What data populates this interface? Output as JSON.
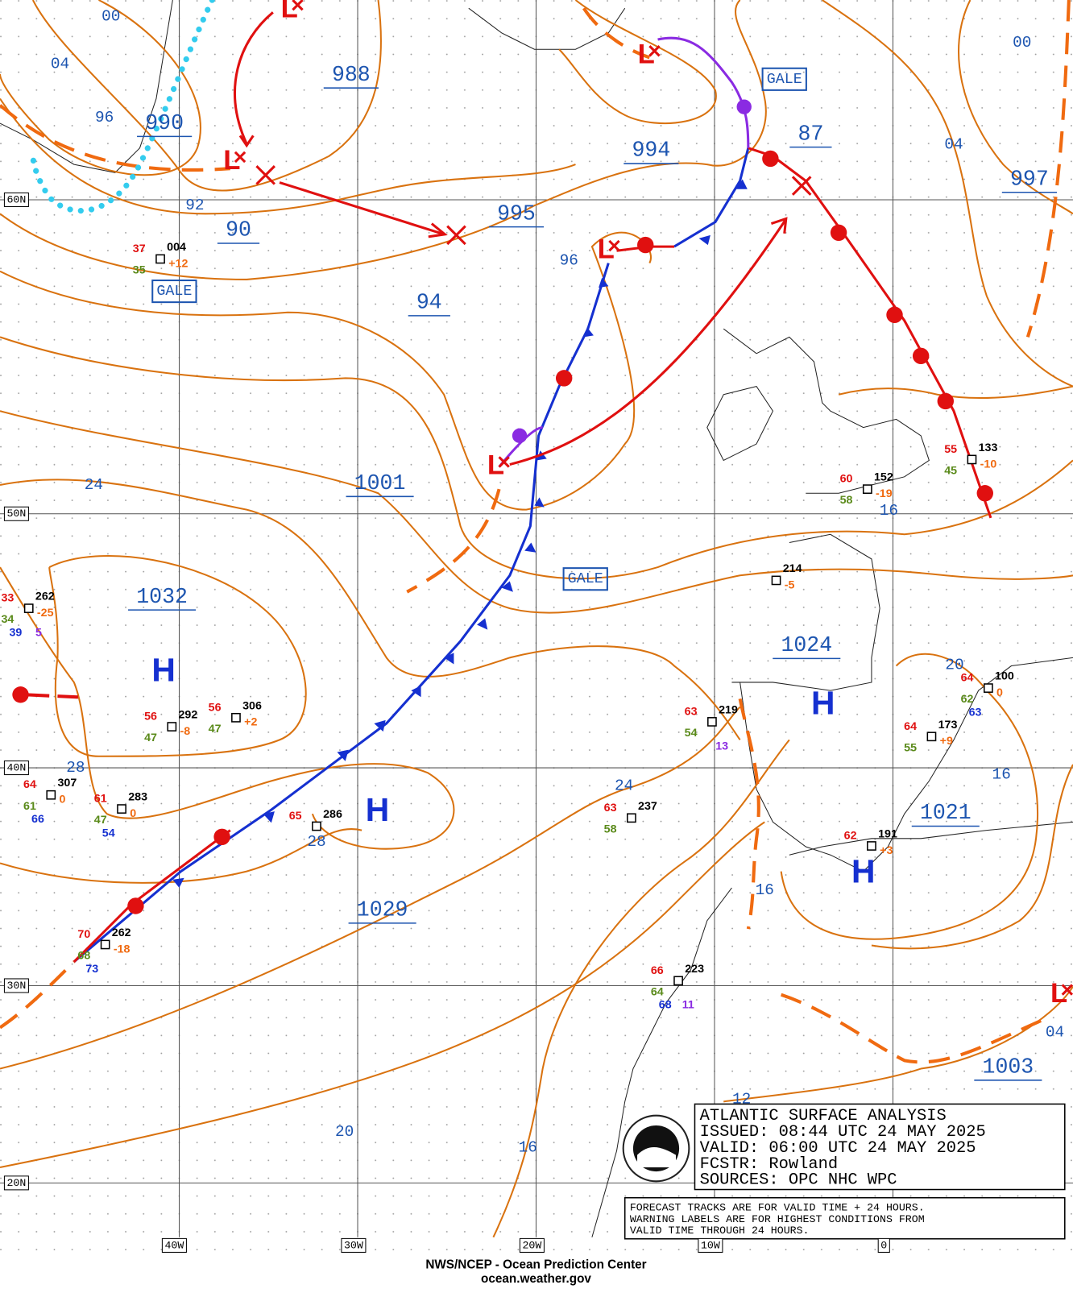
{
  "pressure_centers": [
    "988",
    "990",
    "90",
    "995",
    "994",
    "87",
    "997",
    "94",
    "1001",
    "1032",
    "1024",
    "1021",
    "1029",
    "1003"
  ],
  "isobar_labels": [
    "00",
    "04",
    "96",
    "92",
    "00",
    "04",
    "96",
    "24",
    "16",
    "28",
    "28",
    "24",
    "20",
    "16",
    "16",
    "20",
    "16",
    "04",
    "12"
  ],
  "warnings": [
    "GALE",
    "GALE",
    "GALE"
  ],
  "highs": [
    "H",
    "H",
    "H",
    "H"
  ],
  "lows": [
    "L",
    "L",
    "L",
    "L",
    "L",
    "L"
  ],
  "latitudes": [
    "60N",
    "50N",
    "40N",
    "30N",
    "20N"
  ],
  "longitudes": [
    "40W",
    "30W",
    "20W",
    "10W",
    "0"
  ],
  "stations": [
    {
      "temperature": "37",
      "pressure": "004",
      "dewpoint": "35",
      "tendency": "+12"
    },
    {
      "temperature": "33",
      "pressure": "262",
      "dewpoint": "34",
      "tendency": "-25",
      "sst": "39",
      "waves": "5"
    },
    {
      "temperature": "56",
      "pressure": "292",
      "dewpoint": "47",
      "tendency": "-8"
    },
    {
      "temperature": "56",
      "pressure": "306",
      "dewpoint": "47",
      "tendency": "+2"
    },
    {
      "temperature": "64",
      "pressure": "307",
      "dewpoint": "61",
      "tendency": "0",
      "sst": "66"
    },
    {
      "temperature": "61",
      "pressure": "283",
      "dewpoint": "47",
      "tendency": "0",
      "sst": "54"
    },
    {
      "temperature": "65",
      "pressure": "286"
    },
    {
      "temperature": "70",
      "pressure": "262",
      "dewpoint": "68",
      "tendency": "-18",
      "sst": "73"
    },
    {
      "pressure": "214",
      "tendency": "-5"
    },
    {
      "temperature": "63",
      "pressure": "219",
      "dewpoint": "54",
      "waves": "13"
    },
    {
      "temperature": "63",
      "pressure": "237",
      "dewpoint": "58"
    },
    {
      "temperature": "66",
      "pressure": "223",
      "dewpoint": "64",
      "waves": "11",
      "sst": "68"
    },
    {
      "temperature": "60",
      "pressure": "152",
      "dewpoint": "58",
      "tendency": "-19"
    },
    {
      "temperature": "55",
      "pressure": "133",
      "dewpoint": "45",
      "tendency": "-10"
    },
    {
      "temperature": "64",
      "pressure": "100",
      "dewpoint": "62",
      "tendency": "0",
      "sst": "63"
    },
    {
      "temperature": "64",
      "pressure": "173",
      "dewpoint": "55",
      "tendency": "+9"
    },
    {
      "temperature": "62",
      "pressure": "191",
      "tendency": "+3"
    }
  ],
  "info_box": [
    "ATLANTIC SURFACE ANALYSIS",
    "ISSUED:  08:44 UTC 24 MAY 2025",
    "VALID:   06:00 UTC 24 MAY 2025",
    "FCSTR:   Rowland",
    "SOURCES: OPC NHC WPC"
  ],
  "note": [
    "FORECAST TRACKS ARE FOR VALID TIME + 24 HOURS.",
    "WARNING LABELS ARE FOR HIGHEST CONDITIONS FROM",
    "VALID TIME THROUGH 24 HOURS."
  ],
  "footer": [
    "NWS/NCEP - Ocean Prediction Center",
    "ocean.weather.gov"
  ]
}
